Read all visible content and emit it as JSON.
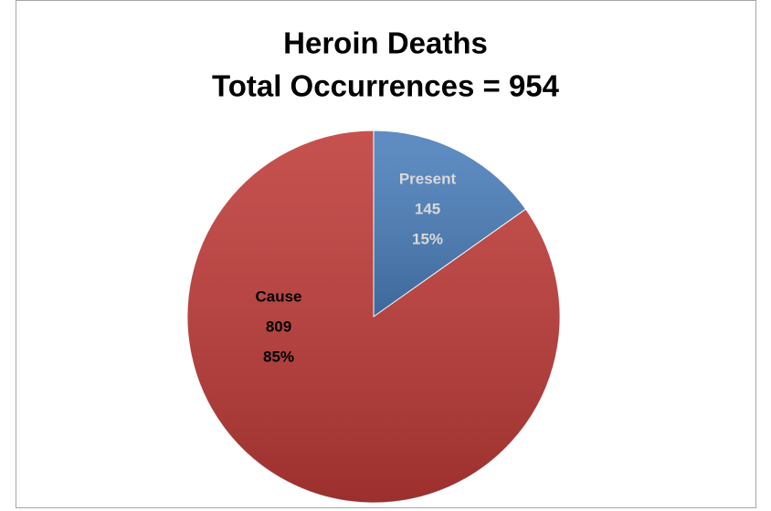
{
  "chart_data": {
    "type": "pie",
    "title": "Heroin Deaths",
    "subtitle": "Total Occurrences = 954",
    "categories": [
      "Present",
      "Cause"
    ],
    "values": [
      145,
      809
    ],
    "percent_labels": [
      "15%",
      "85%"
    ],
    "colors": [
      "#4a7ebb",
      "#be3a37"
    ],
    "label_colors": [
      "#d9d9d9",
      "#000000"
    ]
  }
}
